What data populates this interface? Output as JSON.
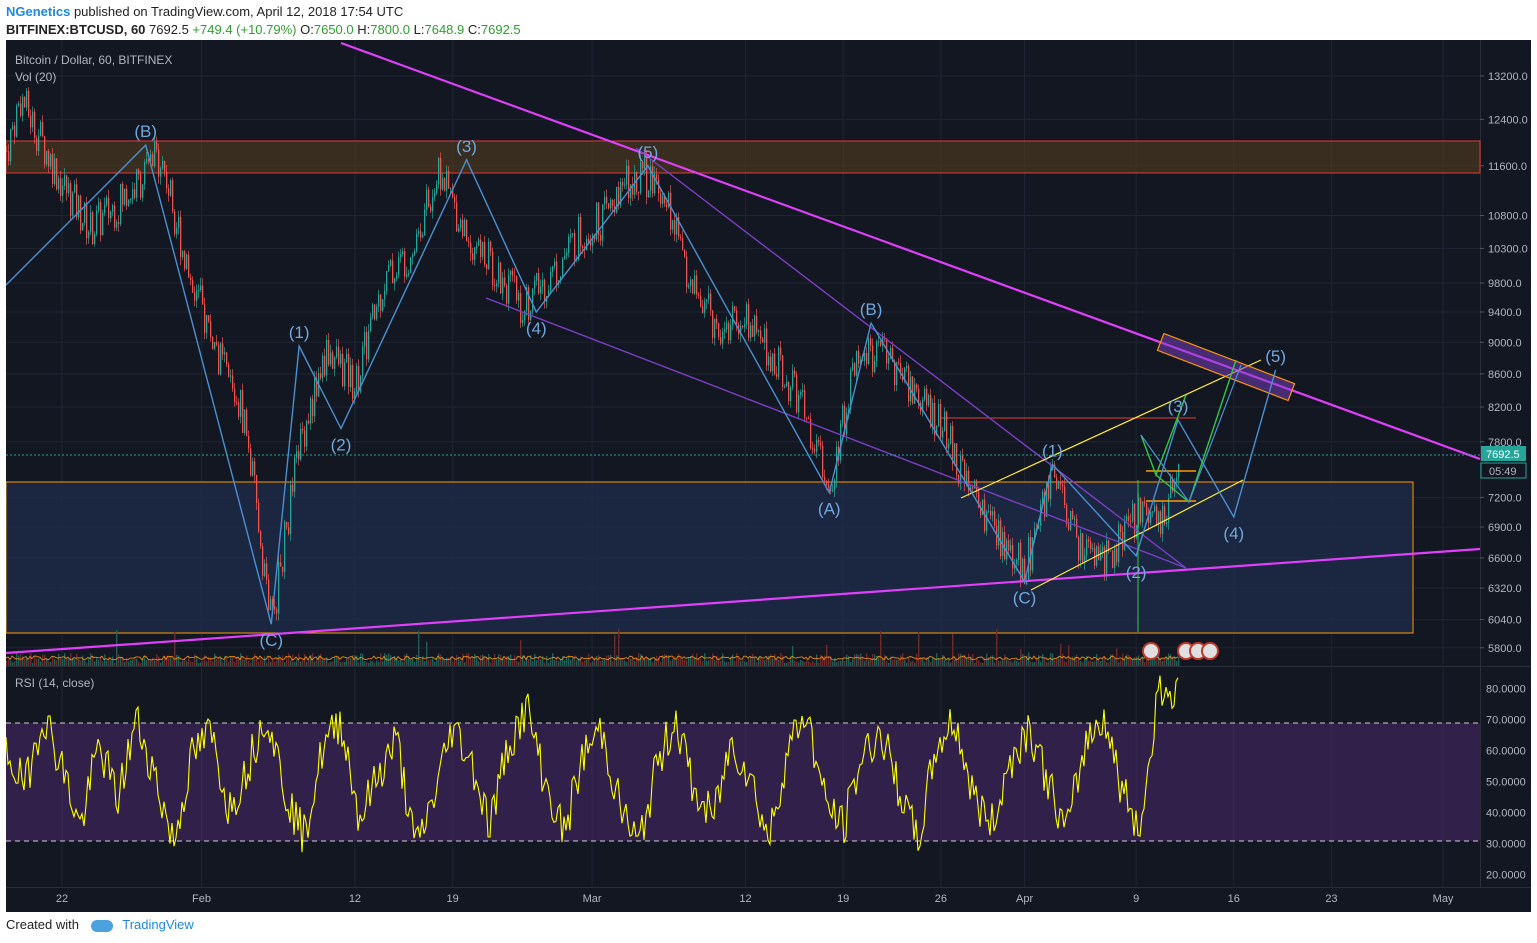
{
  "header": {
    "author": "NGenetics",
    "published": "published on TradingView.com, April 12, 2018 17:54 UTC",
    "symbol": "BITFINEX:BTCUSD, 60",
    "last": "7692.5",
    "change": "+749.4 (+10.79%)",
    "o_label": "O:",
    "o_val": "7650.0",
    "h_label": "H:",
    "h_val": "7800.0",
    "l_label": "L:",
    "l_val": "7648.9",
    "c_label": "C:",
    "c_val": "7692.5"
  },
  "legend": {
    "main": "Bitcoin / Dollar, 60, BITFINEX",
    "vol": "Vol (20)",
    "rsi": "RSI (14, close)"
  },
  "price_tag": "7692.5",
  "countdown": "05:49",
  "footer": {
    "created": "Created with",
    "brand": "TradingView"
  },
  "colors": {
    "background": "#131722",
    "rsi_line": "#ffff00",
    "trendline": "#e040fb",
    "wave": "#4a90d0",
    "channel": "#7b3fc4",
    "target_box": "#ff9800",
    "support_box": "#1e2b4a",
    "resistance_box": "#5a3f1e"
  },
  "chart_data": [
    {
      "type": "line",
      "title": "Bitcoin / Dollar, 60, BITFINEX",
      "y_scale": "log",
      "ylim": [
        5650,
        13900
      ],
      "y_ticks": [
        13200,
        12400,
        11600,
        10800,
        10300,
        9800,
        9400,
        9000,
        8600,
        8200,
        7800,
        7200,
        6900,
        6600,
        6320,
        6040,
        5800
      ],
      "y_tick_labels": [
        "13200.0",
        "12400.0",
        "11600.0",
        "10800.0",
        "10300.0",
        "9800.0",
        "9400.0",
        "9000.0",
        "8600.0",
        "8200.0",
        "7800.0",
        "7200.0",
        "6900.0",
        "6600.0",
        "6320.0",
        "6040.0",
        "5800.0"
      ],
      "x_tick_labels": [
        "22",
        "Feb",
        "12",
        "19",
        "Mar",
        "12",
        "19",
        "26",
        "Apr",
        "9",
        "16",
        "23",
        "May"
      ],
      "series": [
        {
          "x": [
            "Jan 17",
            "Jan 19",
            "Jan 22",
            "Jan 24",
            "Jan 27",
            "Jan 29",
            "Jan 31",
            "Feb 2",
            "Feb 4",
            "Feb 6",
            "Feb 8",
            "Feb 10",
            "Feb 12",
            "Feb 14",
            "Feb 16",
            "Feb 18",
            "Feb 20",
            "Feb 22",
            "Feb 24",
            "Feb 26",
            "Feb 28",
            "Mar 2",
            "Mar 4",
            "Mar 6",
            "Mar 8",
            "Mar 10",
            "Mar 12",
            "Mar 14",
            "Mar 16",
            "Mar 18",
            "Mar 20",
            "Mar 22",
            "Mar 24",
            "Mar 26",
            "Mar 28",
            "Mar 30",
            "Apr 1",
            "Apr 3",
            "Apr 5",
            "Apr 7",
            "Apr 9",
            "Apr 11",
            "Apr 12"
          ],
          "values": [
            11000,
            12800,
            11300,
            10600,
            11200,
            11800,
            10000,
            8900,
            8100,
            6000,
            7800,
            8900,
            8500,
            9800,
            10300,
            11500,
            10500,
            10000,
            9500,
            9900,
            10500,
            10800,
            11500,
            11300,
            9800,
            9200,
            9300,
            8800,
            8200,
            7300,
            8900,
            8800,
            8400,
            8000,
            7300,
            6800,
            6500,
            7400,
            6700,
            6600,
            7000,
            6900,
            7692.5
          ]
        }
      ],
      "annotations": {
        "resistance_zone": [
          11350,
          11950
        ],
        "support_zone": [
          6000,
          7400
        ],
        "horizontal_line": 8100,
        "wave_labels": [
          {
            "label": "(B)",
            "date": "Jan 28",
            "price": 11950
          },
          {
            "label": "(C)",
            "date": "Feb 6",
            "price": 6000
          },
          {
            "label": "(1)",
            "date": "Feb 8",
            "price": 8950
          },
          {
            "label": "(2)",
            "date": "Feb 11",
            "price": 7950
          },
          {
            "label": "(3)",
            "date": "Feb 20",
            "price": 11700
          },
          {
            "label": "(4)",
            "date": "Feb 25",
            "price": 9400
          },
          {
            "label": "(5)",
            "date": "Mar 5",
            "price": 11600
          },
          {
            "label": "(B)",
            "date": "Mar 21",
            "price": 9250
          },
          {
            "label": "(A)",
            "date": "Mar 18",
            "price": 7250
          },
          {
            "label": "(C)",
            "date": "Apr 1",
            "price": 6380
          },
          {
            "label": "(1)",
            "date": "Apr 3",
            "price": 7550
          },
          {
            "label": "(2)",
            "date": "Apr 9",
            "price": 6620
          },
          {
            "label": "(3)",
            "date": "Apr 12",
            "price": 8050
          },
          {
            "label": "(4)",
            "date": "Apr 16",
            "price": 7000
          },
          {
            "label": "(5)",
            "date": "Apr 19",
            "price": 8650
          }
        ]
      }
    },
    {
      "type": "line",
      "title": "RSI (14, close)",
      "ylim": [
        16,
        87
      ],
      "y_ticks": [
        80,
        70,
        60,
        50,
        40,
        30,
        20
      ],
      "y_tick_labels": [
        "80.0000",
        "70.0000",
        "60.0000",
        "50.0000",
        "40.0000",
        "30.0000",
        "20.0000"
      ],
      "bands": [
        30,
        70
      ],
      "series": [
        {
          "values": [
            60,
            48,
            72,
            55,
            35,
            62,
            44,
            70,
            52,
            30,
            58,
            66,
            41,
            55,
            73,
            47,
            32,
            60,
            70,
            38,
            52,
            64,
            28,
            45,
            68,
            57,
            36,
            62,
            74,
            49,
            33,
            58,
            67,
            42,
            29,
            55,
            71,
            46,
            38,
            63,
            52,
            31,
            60,
            73,
            44,
            35,
            58,
            66,
            48,
            30,
            61,
            70,
            45,
            36,
            57,
            68,
            50,
            33,
            62,
            72,
            47,
            35,
            82,
            77
          ]
        }
      ]
    }
  ]
}
